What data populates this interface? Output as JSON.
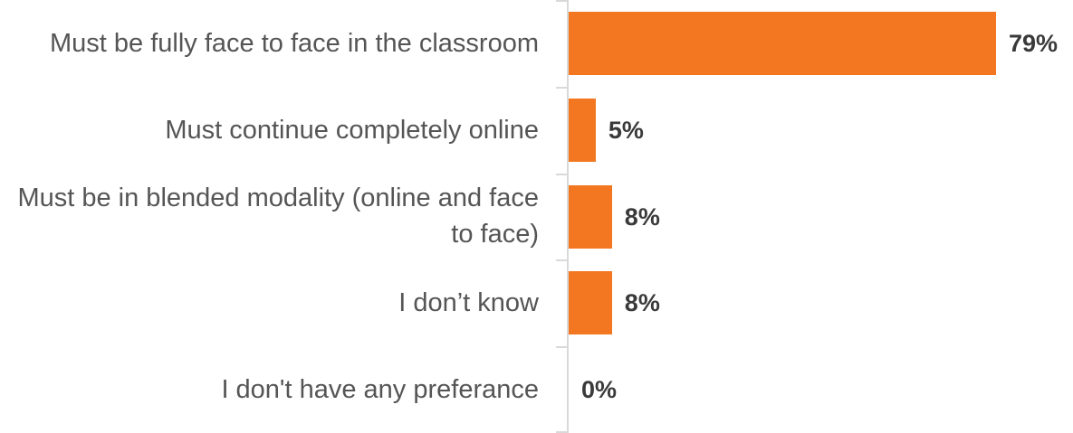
{
  "chart_data": {
    "type": "bar",
    "orientation": "horizontal",
    "categories": [
      "Must be fully face to face in the classroom",
      "Must continue completely online",
      "Must be in blended modality (online and face to face)",
      "I don’t know",
      "I don't have any preferance"
    ],
    "values": [
      79,
      5,
      8,
      8,
      0
    ],
    "value_labels": [
      "79%",
      "5%",
      "8%",
      "8%",
      "0%"
    ],
    "color": "#f37721"
  }
}
